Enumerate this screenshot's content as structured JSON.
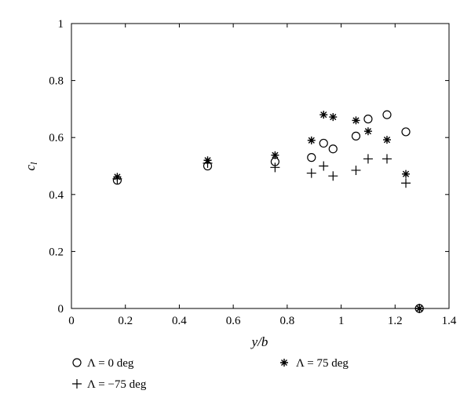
{
  "chart_data": {
    "type": "scatter",
    "xlabel": "y/b",
    "ylabel": "c_l",
    "xlim": [
      0,
      1.4
    ],
    "ylim": [
      0,
      1
    ],
    "x_ticks": [
      "0",
      "0.2",
      "0.4",
      "0.6",
      "0.8",
      "1",
      "1.2",
      "1.4"
    ],
    "y_ticks": [
      "0",
      "0.2",
      "0.4",
      "0.6",
      "0.8",
      "1"
    ],
    "grid": false,
    "legend_position": "bottom",
    "series": [
      {
        "name": "Λ = 0 deg",
        "marker": "circle",
        "points": [
          {
            "x": 0.17,
            "y": 0.45
          },
          {
            "x": 0.505,
            "y": 0.5
          },
          {
            "x": 0.755,
            "y": 0.515
          },
          {
            "x": 0.89,
            "y": 0.53
          },
          {
            "x": 0.935,
            "y": 0.58
          },
          {
            "x": 0.97,
            "y": 0.56
          },
          {
            "x": 1.055,
            "y": 0.605
          },
          {
            "x": 1.1,
            "y": 0.665
          },
          {
            "x": 1.17,
            "y": 0.68
          },
          {
            "x": 1.24,
            "y": 0.62
          },
          {
            "x": 1.29,
            "y": 0.0
          }
        ]
      },
      {
        "name": "Λ = −75 deg",
        "marker": "plus",
        "points": [
          {
            "x": 0.17,
            "y": 0.455
          },
          {
            "x": 0.505,
            "y": 0.51
          },
          {
            "x": 0.755,
            "y": 0.495
          },
          {
            "x": 0.89,
            "y": 0.475
          },
          {
            "x": 0.935,
            "y": 0.5
          },
          {
            "x": 0.97,
            "y": 0.465
          },
          {
            "x": 1.055,
            "y": 0.485
          },
          {
            "x": 1.1,
            "y": 0.525
          },
          {
            "x": 1.17,
            "y": 0.525
          },
          {
            "x": 1.24,
            "y": 0.44
          },
          {
            "x": 1.29,
            "y": 0.0
          }
        ]
      },
      {
        "name": "Λ = 75 deg",
        "marker": "asterisk",
        "points": [
          {
            "x": 0.17,
            "y": 0.462
          },
          {
            "x": 0.505,
            "y": 0.52
          },
          {
            "x": 0.755,
            "y": 0.538
          },
          {
            "x": 0.89,
            "y": 0.59
          },
          {
            "x": 0.935,
            "y": 0.68
          },
          {
            "x": 0.97,
            "y": 0.672
          },
          {
            "x": 1.055,
            "y": 0.66
          },
          {
            "x": 1.1,
            "y": 0.622
          },
          {
            "x": 1.17,
            "y": 0.592
          },
          {
            "x": 1.24,
            "y": 0.472
          },
          {
            "x": 1.29,
            "y": 0.0
          }
        ]
      }
    ]
  }
}
